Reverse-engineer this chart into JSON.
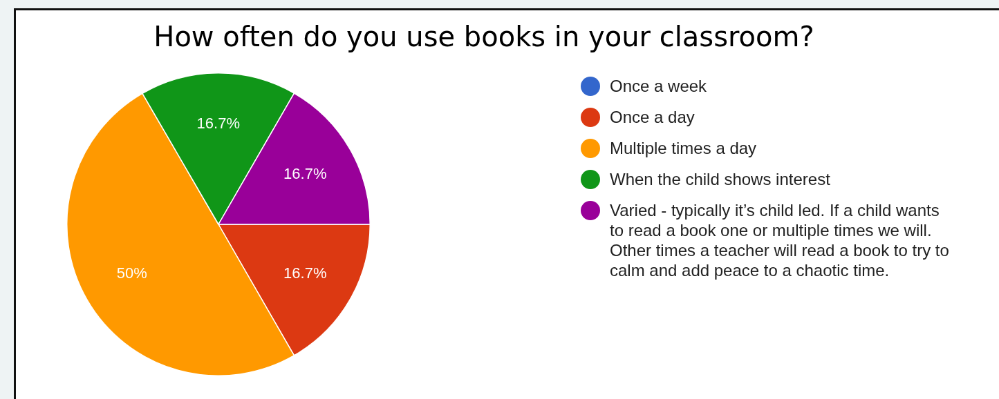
{
  "chart_data": {
    "type": "pie",
    "title": "How often do you use books in your classroom?",
    "categories": [
      "Once a week",
      "Once a day",
      "Multiple times a day",
      "When the child shows interest",
      "Varied - typically it’s child led. If a child wants to read a book one or multiple times we will. Other times a teacher will read a book to try to calm and add peace to a chaotic time."
    ],
    "values": [
      0,
      16.7,
      50,
      16.7,
      16.7
    ],
    "value_labels": [
      null,
      "16.7%",
      "50%",
      "16.7%",
      "16.7%"
    ],
    "colors": [
      "#3366cc",
      "#dc3912",
      "#ff9900",
      "#109618",
      "#990099"
    ],
    "legend": "right"
  }
}
